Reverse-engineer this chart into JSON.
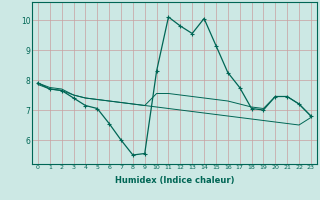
{
  "xlabel": "Humidex (Indice chaleur)",
  "background_color": "#cce8e4",
  "grid_color": "#c8a0a0",
  "line_color": "#006655",
  "xlim": [
    -0.5,
    23.5
  ],
  "ylim": [
    5.2,
    10.6
  ],
  "yticks": [
    6,
    7,
    8,
    9,
    10
  ],
  "xticks": [
    0,
    1,
    2,
    3,
    4,
    5,
    6,
    7,
    8,
    9,
    10,
    11,
    12,
    13,
    14,
    15,
    16,
    17,
    18,
    19,
    20,
    21,
    22,
    23
  ],
  "series1_x": [
    0,
    1,
    2,
    3,
    4,
    5,
    6,
    7,
    8,
    9,
    10,
    11,
    12,
    13,
    14,
    15,
    16,
    17,
    18,
    19,
    20,
    21,
    22,
    23
  ],
  "series1_y": [
    7.9,
    7.7,
    7.65,
    7.4,
    7.15,
    7.05,
    6.55,
    6.0,
    5.5,
    5.55,
    8.3,
    10.1,
    9.8,
    9.55,
    10.05,
    9.15,
    8.25,
    7.75,
    7.05,
    7.0,
    7.45,
    7.45,
    7.2,
    6.8
  ],
  "series2_x": [
    0,
    1,
    2,
    3,
    4,
    5,
    6,
    7,
    8,
    9,
    10,
    11,
    12,
    13,
    14,
    15,
    16,
    17,
    18,
    19,
    20,
    21,
    22,
    23
  ],
  "series2_y": [
    7.9,
    7.75,
    7.7,
    7.5,
    7.4,
    7.35,
    7.3,
    7.25,
    7.2,
    7.15,
    7.55,
    7.55,
    7.5,
    7.45,
    7.4,
    7.35,
    7.3,
    7.2,
    7.1,
    7.05,
    7.45,
    7.45,
    7.2,
    6.8
  ],
  "series3_x": [
    0,
    1,
    2,
    3,
    4,
    5,
    6,
    7,
    8,
    9,
    10,
    11,
    12,
    13,
    14,
    15,
    16,
    17,
    18,
    19,
    20,
    21,
    22,
    23
  ],
  "series3_y": [
    7.85,
    7.7,
    7.65,
    7.5,
    7.4,
    7.35,
    7.3,
    7.25,
    7.2,
    7.15,
    7.1,
    7.05,
    7.0,
    6.95,
    6.9,
    6.85,
    6.8,
    6.75,
    6.7,
    6.65,
    6.6,
    6.55,
    6.5,
    6.75
  ]
}
